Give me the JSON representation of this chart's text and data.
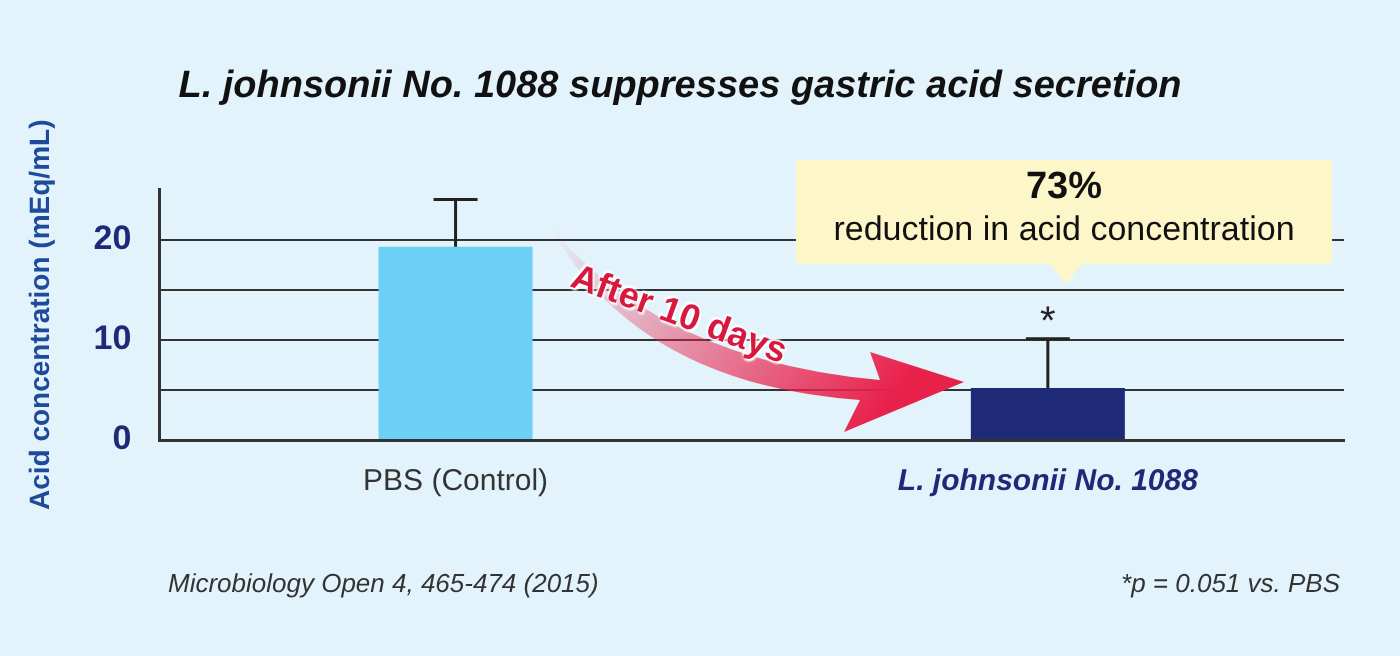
{
  "chart_data": {
    "type": "bar",
    "title": "L. johnsonii No. 1088 suppresses gastric acid secretion",
    "ylabel": "Acid concentration (mEq/mL)",
    "categories": [
      "PBS (Control)",
      "L. johnsonii No. 1088"
    ],
    "values": [
      19.3,
      5.2
    ],
    "colors": [
      "#6ccff6",
      "#1e2a78"
    ],
    "errors": [
      [
        19.3,
        24.0
      ],
      [
        5.2,
        10.1
      ]
    ],
    "ylim": [
      0,
      25
    ],
    "yticks": [
      0,
      {
        "value": 5,
        "label": null
      },
      10,
      {
        "value": 15,
        "label": null
      },
      20
    ],
    "grid": "y",
    "legend": false,
    "annotations": [
      "After 10 days",
      "73%",
      "reduction in acid concentration",
      {
        "text": "*",
        "x": "L. johnsonii No. 1088",
        "y": 10.1
      },
      "Microbiology Open 4, 465-474 (2015)",
      "*p = 0.051 vs. PBS"
    ]
  }
}
